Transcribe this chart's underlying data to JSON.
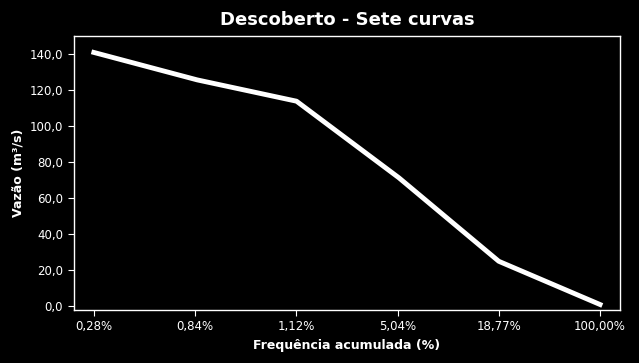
{
  "title": "Descoberto - Sete curvas",
  "xlabel": "Frequência acumulada (%)",
  "ylabel": "Vazão (m³/s)",
  "background_color": "#000000",
  "text_color": "#ffffff",
  "line_color": "#ffffff",
  "line_width": 3.5,
  "x_tick_positions": [
    0,
    1,
    2,
    3,
    4,
    5
  ],
  "x_tick_labels": [
    "0,28%",
    "0,84%",
    "1,12%",
    "5,04%",
    "18,77%",
    "100,00%"
  ],
  "y_ticks": [
    0.0,
    20.0,
    40.0,
    60.0,
    80.0,
    100.0,
    120.0,
    140.0
  ],
  "y_tick_labels": [
    "0,0",
    "20,0",
    "40,0",
    "60,0",
    "80,0",
    "100,0",
    "120,0",
    "140,0"
  ],
  "ylim": [
    -2.0,
    150.0
  ],
  "xlim": [
    -0.2,
    5.2
  ],
  "curve_x": [
    0,
    1,
    2,
    3,
    4,
    5
  ],
  "curve_y": [
    141.0,
    126.0,
    114.0,
    72.0,
    25.0,
    1.0
  ],
  "title_fontsize": 13,
  "axis_label_fontsize": 9,
  "tick_fontsize": 8.5
}
